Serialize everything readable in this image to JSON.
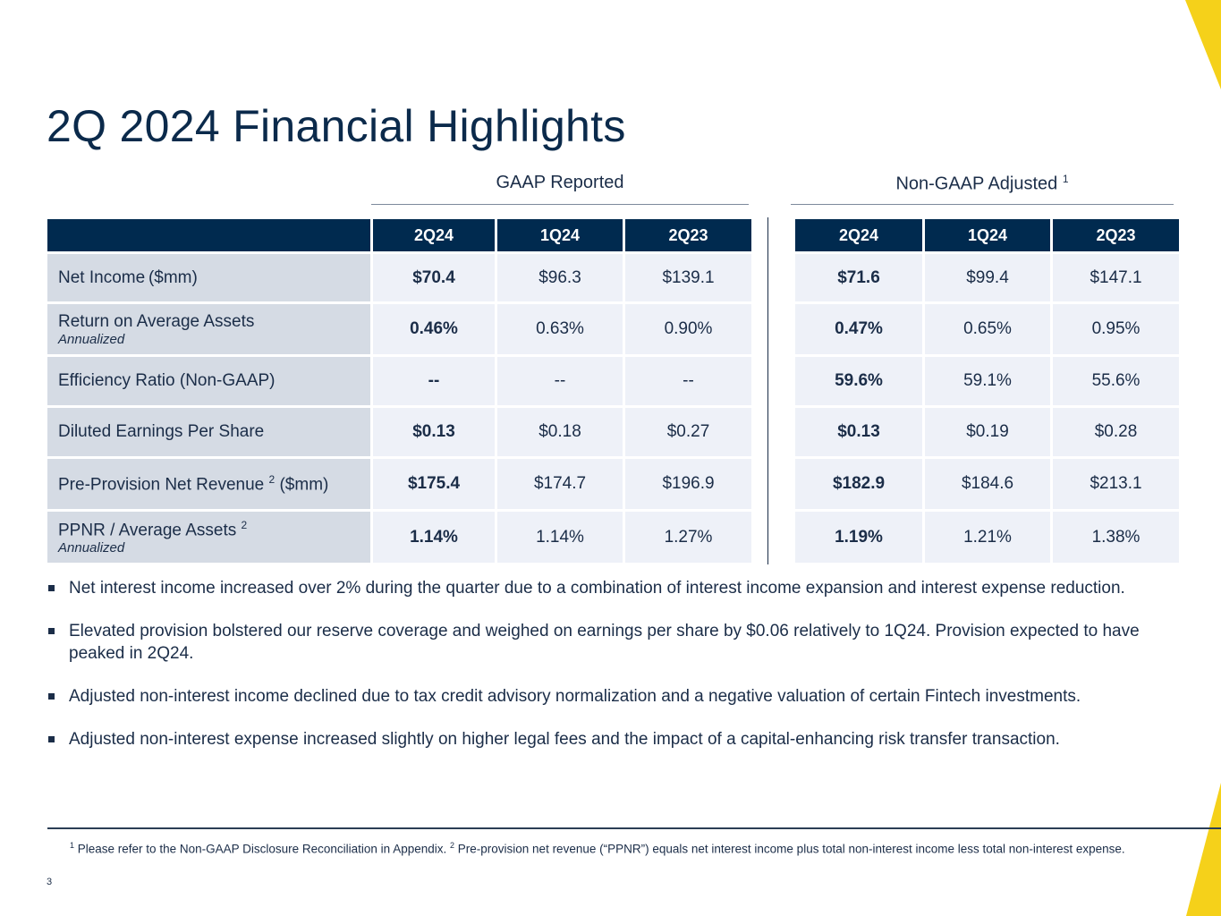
{
  "title": "2Q 2024 Financial Highlights",
  "gaap_header": "GAAP Reported",
  "nongaap_header": "Non-GAAP Adjusted",
  "nongaap_footnote_ref": "1",
  "columns": [
    "2Q24",
    "1Q24",
    "2Q23"
  ],
  "rows": [
    {
      "label": "Net Income ($mm)",
      "sub": "",
      "sup": "",
      "suffix": "",
      "gaap": [
        "$70.4",
        "$96.3",
        "$139.1"
      ],
      "nongaap": [
        "$71.6",
        "$99.4",
        "$147.1"
      ]
    },
    {
      "label": "Return on Average Assets",
      "sub": "Annualized",
      "sup": "",
      "suffix": "",
      "gaap": [
        "0.46%",
        "0.63%",
        "0.90%"
      ],
      "nongaap": [
        "0.47%",
        "0.65%",
        "0.95%"
      ]
    },
    {
      "label": "Efficiency Ratio (Non-GAAP)",
      "sub": "",
      "sup": "",
      "suffix": "",
      "gaap": [
        "--",
        "--",
        "--"
      ],
      "nongaap": [
        "59.6%",
        "59.1%",
        "55.6%"
      ]
    },
    {
      "label": "Diluted Earnings Per Share",
      "sub": "",
      "sup": "",
      "suffix": "",
      "gaap": [
        "$0.13",
        "$0.18",
        "$0.27"
      ],
      "nongaap": [
        "$0.13",
        "$0.19",
        "$0.28"
      ]
    },
    {
      "label": "Pre-Provision Net Revenue ",
      "sub": "",
      "sup": "2",
      "suffix": "($mm)",
      "gaap": [
        "$175.4",
        "$174.7",
        "$196.9"
      ],
      "nongaap": [
        "$182.9",
        "$184.6",
        "$213.1"
      ]
    },
    {
      "label": "PPNR / Average Assets ",
      "sub": "Annualized",
      "sup": "2",
      "suffix": "",
      "gaap": [
        "1.14%",
        "1.14%",
        "1.27%"
      ],
      "nongaap": [
        "1.19%",
        "1.21%",
        "1.38%"
      ]
    }
  ],
  "bullets": [
    "Net interest income increased over 2% during the quarter due to a combination of interest income expansion and interest expense reduction.",
    "Elevated provision bolstered our reserve coverage and weighed on earnings per share by $0.06 relatively to 1Q24.  Provision expected to have peaked in 2Q24.",
    "Adjusted non-interest income declined due to tax credit advisory normalization and a negative valuation of certain Fintech investments.",
    "Adjusted non-interest expense increased slightly on higher legal fees and the impact of a capital-enhancing risk transfer transaction."
  ],
  "footnotes": [
    {
      "ref": "1",
      "text": " Please refer to the Non-GAAP Disclosure Reconciliation in Appendix.  "
    },
    {
      "ref": "2",
      "text": " Pre-provision net revenue (“PPNR”) equals net interest income plus total non-interest income less total non-interest expense."
    }
  ],
  "page_number": "3",
  "colors": {
    "navy": "#002a4f",
    "label_cell": "#d5dbe4",
    "value_cell": "#eef1f8",
    "accent_yellow": "#f5d11a"
  }
}
